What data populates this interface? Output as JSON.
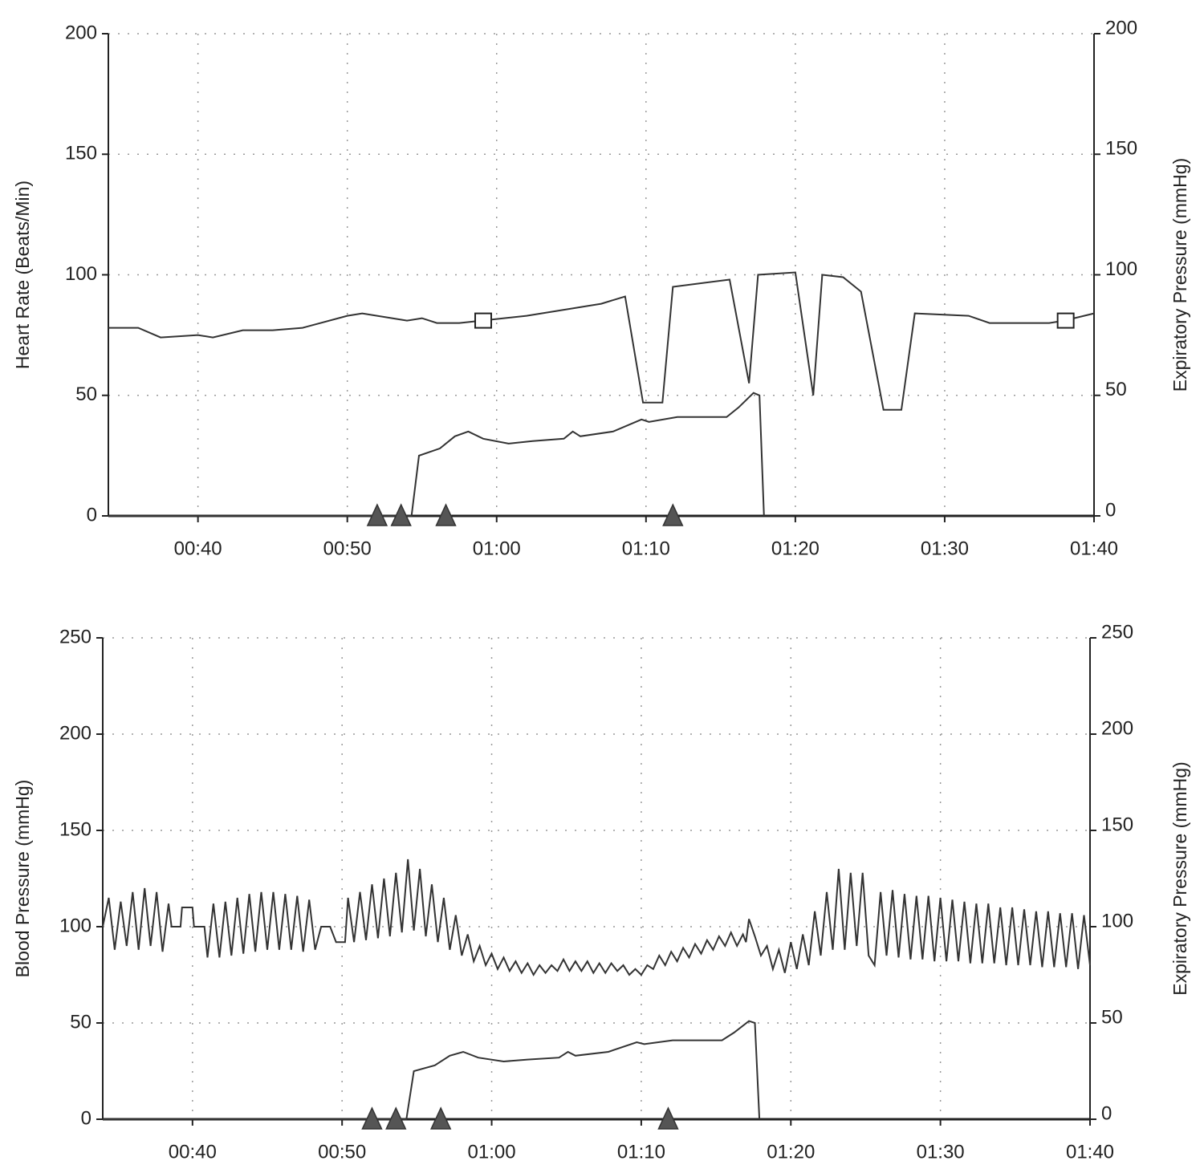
{
  "chart_data": [
    {
      "type": "line",
      "y_label": "Heart Rate (Beats/Min)",
      "y2_label": "Expiratory Pressure (mmHg)",
      "xlim": [
        34,
        100
      ],
      "xticks": [
        {
          "value": 40,
          "label": "00:40"
        },
        {
          "value": 50,
          "label": "00:50"
        },
        {
          "value": 60,
          "label": "01:00"
        },
        {
          "value": 70,
          "label": "01:10"
        },
        {
          "value": 80,
          "label": "01:20"
        },
        {
          "value": 90,
          "label": "01:30"
        },
        {
          "value": 100,
          "label": "01:40"
        }
      ],
      "ylim": [
        0,
        200
      ],
      "yticks": [
        0,
        50,
        100,
        150,
        200
      ],
      "y2lim": [
        0,
        200
      ],
      "y2ticks": [
        0,
        50,
        100,
        150,
        200
      ],
      "grid": true,
      "series": [
        {
          "color": "#333333",
          "x": [
            34,
            36,
            37.5,
            40,
            41,
            43,
            45,
            47,
            50,
            51,
            53,
            54,
            55,
            56,
            57.5,
            59,
            62,
            65,
            67,
            68.6,
            69.8,
            71.1,
            71.8,
            75.6,
            76.9,
            77.5,
            80,
            81.2,
            81.8,
            83.2,
            84.4,
            85.9,
            87.1,
            88,
            91.6,
            93,
            97,
            98,
            100
          ],
          "values": [
            78,
            78,
            74,
            75,
            74,
            77,
            77,
            78,
            83,
            84,
            82,
            81,
            82,
            80,
            80,
            81,
            83,
            86,
            88,
            91,
            47,
            47,
            95,
            98,
            55,
            100,
            101,
            50,
            100,
            99,
            93,
            44,
            44,
            84,
            83,
            80,
            80,
            81,
            84
          ]
        },
        {
          "color": "#333333",
          "axis": "y2",
          "x": [
            34,
            54.3,
            54.8,
            56.2,
            57.2,
            58.1,
            59.1,
            60.8,
            62.4,
            64.5,
            65.1,
            65.6,
            67.8,
            69.7,
            70.2,
            72.1,
            75.4,
            76.2,
            77.2,
            77.6,
            77.9
          ],
          "values": [
            0,
            0,
            25,
            28,
            33,
            35,
            32,
            30,
            31,
            32,
            35,
            33,
            35,
            40,
            39,
            41,
            41,
            45,
            51,
            50,
            0
          ]
        }
      ],
      "markers": [
        {
          "shape": "triangle",
          "x": [
            52,
            53.6,
            56.6,
            71.8
          ]
        },
        {
          "shape": "square",
          "x": [
            59.1,
            98.1
          ],
          "y": [
            81,
            81
          ]
        }
      ]
    },
    {
      "type": "line",
      "y_label": "Blood Pressure (mmHg)",
      "y2_label": "Expiratory Pressure (mmHg)",
      "xlim": [
        34,
        100
      ],
      "xticks": [
        {
          "value": 40,
          "label": "00:40"
        },
        {
          "value": 50,
          "label": "00:50"
        },
        {
          "value": 60,
          "label": "01:00"
        },
        {
          "value": 70,
          "label": "01:10"
        },
        {
          "value": 80,
          "label": "01:20"
        },
        {
          "value": 90,
          "label": "01:30"
        },
        {
          "value": 100,
          "label": "01:40"
        }
      ],
      "ylim": [
        0,
        250
      ],
      "yticks": [
        0,
        50,
        100,
        150,
        200,
        250
      ],
      "y2lim": [
        0,
        250
      ],
      "y2ticks": [
        0,
        50,
        100,
        150,
        200,
        250
      ],
      "grid": true,
      "series": [
        {
          "color": "#333333",
          "x": [
            34.0,
            34.4,
            34.8,
            35.2,
            35.6,
            36.0,
            36.4,
            36.8,
            37.2,
            37.6,
            38.0,
            38.4,
            38.6,
            39.2,
            39.3,
            40.0,
            40.1,
            40.8,
            41.0,
            41.4,
            41.8,
            42.2,
            42.6,
            43.0,
            43.4,
            43.8,
            44.2,
            44.6,
            45.0,
            45.4,
            45.8,
            46.2,
            46.6,
            47.0,
            47.4,
            47.8,
            48.2,
            48.6,
            49.2,
            49.6,
            50.2,
            50.4,
            50.8,
            51.2,
            51.6,
            52.0,
            52.4,
            52.8,
            53.2,
            53.6,
            54.0,
            54.4,
            54.8,
            55.2,
            55.6,
            56.0,
            56.4,
            56.8,
            57.2,
            57.6,
            58.0,
            58.4,
            58.8,
            59.2,
            59.6,
            60.0,
            60.4,
            60.8,
            61.2,
            61.6,
            62.0,
            62.4,
            62.8,
            63.2,
            63.6,
            64.0,
            64.4,
            64.8,
            65.2,
            65.6,
            66.0,
            66.4,
            66.8,
            67.2,
            67.6,
            68.0,
            68.4,
            68.8,
            69.2,
            69.6,
            70.0,
            70.4,
            70.8,
            71.2,
            71.6,
            72.0,
            72.4,
            72.8,
            73.2,
            73.6,
            74.0,
            74.4,
            74.8,
            75.2,
            75.6,
            76.0,
            76.4,
            76.8,
            77.0,
            77.2,
            77.6,
            78.0,
            78.4,
            78.8,
            79.2,
            79.6,
            80.0,
            80.4,
            80.8,
            81.2,
            81.6,
            82.0,
            82.4,
            82.8,
            83.2,
            83.6,
            84.0,
            84.4,
            84.8,
            85.2,
            85.6,
            86.0,
            86.4,
            86.8,
            87.2,
            87.6,
            88.0,
            88.4,
            88.8,
            89.2,
            89.6,
            90.0,
            90.4,
            90.8,
            91.2,
            91.6,
            92.0,
            92.4,
            92.8,
            93.2,
            93.6,
            94.0,
            94.4,
            94.8,
            95.2,
            95.6,
            96.0,
            96.4,
            96.8,
            97.2,
            97.6,
            98.0,
            98.4,
            98.8,
            99.2,
            99.6,
            100.0
          ],
          "values": [
            100,
            115,
            88,
            113,
            90,
            118,
            88,
            120,
            90,
            118,
            87,
            112,
            100,
            100,
            110,
            110,
            100,
            100,
            84,
            112,
            84,
            113,
            85,
            115,
            86,
            117,
            87,
            118,
            88,
            118,
            88,
            117,
            88,
            116,
            87,
            114,
            88,
            100,
            100,
            92,
            92,
            115,
            92,
            118,
            93,
            122,
            94,
            125,
            95,
            128,
            97,
            135,
            98,
            130,
            95,
            122,
            92,
            115,
            88,
            106,
            85,
            96,
            82,
            90,
            80,
            86,
            78,
            84,
            77,
            82,
            76,
            81,
            75,
            80,
            76,
            80,
            77,
            83,
            77,
            82,
            77,
            82,
            76,
            81,
            76,
            81,
            77,
            80,
            75,
            78,
            75,
            80,
            78,
            85,
            80,
            87,
            82,
            89,
            84,
            91,
            86,
            93,
            88,
            95,
            90,
            97,
            90,
            96,
            92,
            104,
            95,
            85,
            90,
            78,
            88,
            76,
            92,
            78,
            96,
            80,
            108,
            85,
            118,
            88,
            130,
            88,
            128,
            90,
            128,
            85,
            80,
            118,
            85,
            119,
            84,
            117,
            83,
            116,
            83,
            116,
            82,
            115,
            82,
            114,
            82,
            113,
            81,
            112,
            81,
            112,
            81,
            110,
            80,
            110,
            80,
            109,
            80,
            108,
            79,
            108,
            79,
            107,
            79,
            107,
            78,
            106,
            80
          ]
        },
        {
          "color": "#333333",
          "axis": "y2",
          "x": [
            34,
            54.3,
            54.8,
            56.2,
            57.2,
            58.1,
            59.1,
            60.8,
            62.4,
            64.5,
            65.1,
            65.6,
            67.8,
            69.7,
            70.2,
            72.1,
            75.4,
            76.2,
            77.2,
            77.6,
            77.9
          ],
          "values": [
            0,
            0,
            25,
            28,
            33,
            35,
            32,
            30,
            31,
            32,
            35,
            33,
            35,
            40,
            39,
            41,
            41,
            45,
            51,
            50,
            0
          ]
        }
      ],
      "markers": [
        {
          "shape": "triangle",
          "x": [
            52,
            53.6,
            56.6,
            71.8
          ]
        }
      ]
    }
  ]
}
